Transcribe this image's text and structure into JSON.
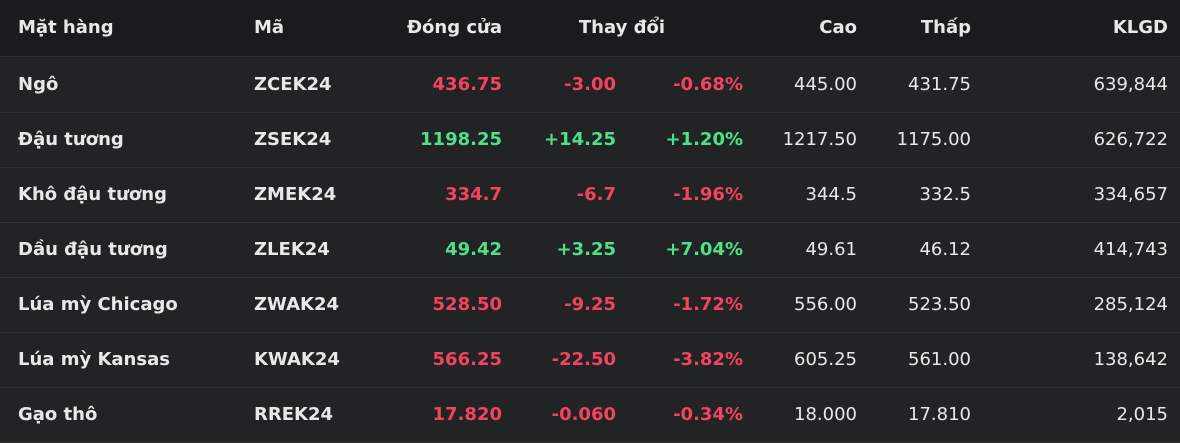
{
  "table": {
    "headers": [
      "Mặt hàng",
      "Mã",
      "Đóng cửa",
      "Thay đổi",
      "Cao",
      "Thấp",
      "KLGD"
    ],
    "rows": [
      [
        "Ngô",
        "ZCEK24",
        "436.75",
        "-3.00",
        "-0.68%",
        "445.00",
        "431.75",
        "639,844"
      ],
      [
        "Đậu tương",
        "ZSEK24",
        "1198.25",
        "+14.25",
        "+1.20%",
        "1217.50",
        "1175.00",
        "626,722"
      ],
      [
        "Khô đậu tương",
        "ZMEK24",
        "334.7",
        "-6.7",
        "-1.96%",
        "344.5",
        "332.5",
        "334,657"
      ],
      [
        "Dầu đậu tương",
        "ZLEK24",
        "49.42",
        "+3.25",
        "+7.04%",
        "49.61",
        "46.12",
        "414,743"
      ],
      [
        "Lúa mỳ Chicago",
        "ZWAK24",
        "528.50",
        "-9.25",
        "-1.72%",
        "556.00",
        "523.50",
        "285,124"
      ],
      [
        "Lúa mỳ Kansas",
        "KWAK24",
        "566.25",
        "-22.50",
        "-3.82%",
        "605.25",
        "561.00",
        "138,642"
      ],
      [
        "Gạo thô",
        "RREK24",
        "17.820",
        "-0.060",
        "-0.34%",
        "18.000",
        "17.810",
        "2,015"
      ]
    ],
    "row_colors": [
      "#f2435f",
      "#4ee08a",
      "#f2435f",
      "#4ee08a",
      "#f2435f",
      "#f2435f",
      "#f2435f"
    ]
  }
}
